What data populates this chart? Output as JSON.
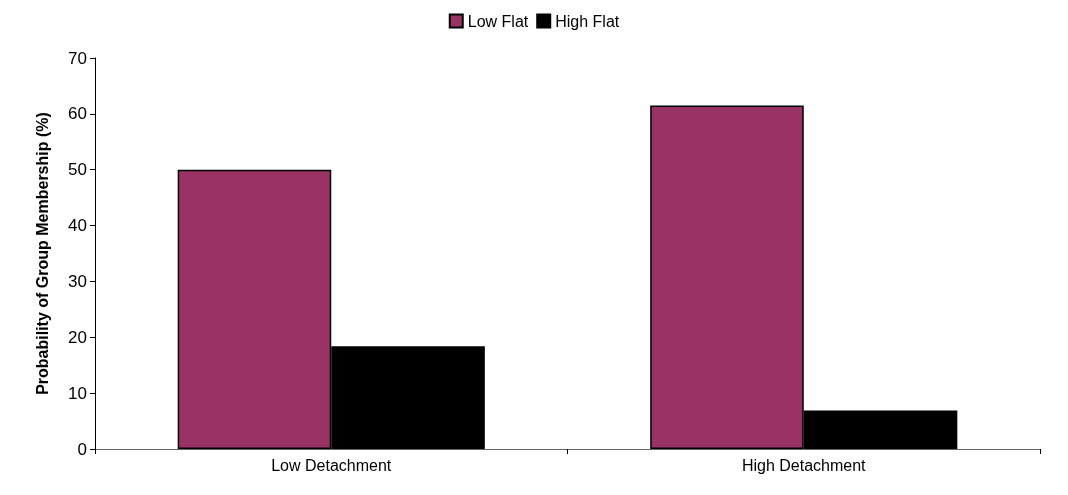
{
  "chart_data": {
    "type": "bar",
    "ylabel": "Probability of Group Membership (%)",
    "categories": [
      "Low Detachment",
      "High Detachment"
    ],
    "series": [
      {
        "name": "Low Flat",
        "color": "#993366",
        "values": [
          50,
          61.5
        ]
      },
      {
        "name": "High Flat",
        "color": "#000000",
        "values": [
          18.4,
          6.9
        ]
      }
    ],
    "ylim": [
      0,
      70
    ],
    "yticks": [
      0,
      10,
      20,
      30,
      40,
      50,
      60,
      70
    ],
    "grid": false,
    "legend": "top"
  }
}
